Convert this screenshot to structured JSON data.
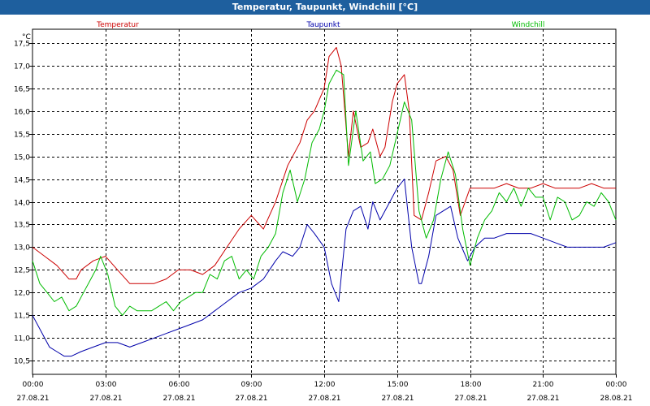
{
  "window": {
    "title": "Temperatur, Taupunkt, Windchill [°C]"
  },
  "chart_data": {
    "type": "line",
    "title": "Temperatur, Taupunkt, Windchill [°C]",
    "ylabel": "°C",
    "xlabel": "",
    "ylim": [
      10.2,
      17.8
    ],
    "xlim": [
      0,
      24
    ],
    "grid": true,
    "y_ticks": [
      "17,5",
      "17,0",
      "16,5",
      "16,0",
      "15,5",
      "15,0",
      "14,5",
      "14,0",
      "13,5",
      "13,0",
      "12,5",
      "12,0",
      "11,5",
      "11,0",
      "10,5"
    ],
    "y_tick_values": [
      17.5,
      17.0,
      16.5,
      16.0,
      15.5,
      15.0,
      14.5,
      14.0,
      13.5,
      13.0,
      12.5,
      12.0,
      11.5,
      11.0,
      10.5
    ],
    "x_ticks": [
      {
        "time": "00:00",
        "date": "27.08.21"
      },
      {
        "time": "03:00",
        "date": "27.08.21"
      },
      {
        "time": "06:00",
        "date": "27.08.21"
      },
      {
        "time": "09:00",
        "date": "27.08.21"
      },
      {
        "time": "12:00",
        "date": "27.08.21"
      },
      {
        "time": "15:00",
        "date": "27.08.21"
      },
      {
        "time": "18:00",
        "date": "27.08.21"
      },
      {
        "time": "21:00",
        "date": "27.08.21"
      },
      {
        "time": "00:00",
        "date": "28.08.21"
      }
    ],
    "series": [
      {
        "name": "Temperatur",
        "color": "#cc0000",
        "x": [
          0,
          0.5,
          1,
          1.5,
          1.8,
          2,
          2.5,
          3,
          3.5,
          4,
          4.5,
          5,
          5.5,
          6,
          6.5,
          7,
          7.5,
          8,
          8.5,
          9,
          9.5,
          10,
          10.5,
          11,
          11.3,
          11.6,
          12,
          12.2,
          12.5,
          12.7,
          13,
          13.2,
          13.5,
          13.8,
          14,
          14.3,
          14.5,
          14.8,
          15,
          15.3,
          15.5,
          15.7,
          16,
          16.3,
          16.6,
          17,
          17.3,
          17.6,
          18,
          18.4,
          19,
          19.5,
          20,
          20.5,
          21,
          21.5,
          22,
          22.5,
          23,
          23.5,
          24
        ],
        "values": [
          13.0,
          12.8,
          12.6,
          12.3,
          12.3,
          12.5,
          12.7,
          12.8,
          12.5,
          12.2,
          12.2,
          12.2,
          12.3,
          12.5,
          12.5,
          12.4,
          12.6,
          13.0,
          13.4,
          13.7,
          13.4,
          14.0,
          14.8,
          15.3,
          15.8,
          16.0,
          16.5,
          17.2,
          17.4,
          17.0,
          15.0,
          16.0,
          15.2,
          15.3,
          15.6,
          15.0,
          15.2,
          16.2,
          16.6,
          16.8,
          16.0,
          13.7,
          13.6,
          14.2,
          14.9,
          15.0,
          14.7,
          13.7,
          14.3,
          14.3,
          14.3,
          14.4,
          14.3,
          14.3,
          14.4,
          14.3,
          14.3,
          14.3,
          14.4,
          14.3,
          14.3
        ]
      },
      {
        "name": "Taupunkt",
        "color": "#0000aa",
        "x": [
          0,
          0.3,
          0.7,
          1,
          1.3,
          1.6,
          2,
          2.5,
          3,
          3.5,
          4,
          4.5,
          5,
          5.5,
          6,
          6.5,
          7,
          7.5,
          8,
          8.5,
          9,
          9.5,
          10,
          10.3,
          10.7,
          11,
          11.3,
          11.6,
          12,
          12.3,
          12.6,
          12.9,
          13.2,
          13.5,
          13.8,
          14,
          14.3,
          14.6,
          15,
          15.3,
          15.6,
          15.9,
          16,
          16.3,
          16.6,
          16.9,
          17.2,
          17.5,
          17.9,
          18.2,
          18.6,
          19,
          19.5,
          20,
          20.5,
          21,
          21.5,
          22,
          22.5,
          23,
          23.5,
          24
        ],
        "values": [
          11.5,
          11.2,
          10.8,
          10.7,
          10.6,
          10.6,
          10.7,
          10.8,
          10.9,
          10.9,
          10.8,
          10.9,
          11.0,
          11.1,
          11.2,
          11.3,
          11.4,
          11.6,
          11.8,
          12.0,
          12.1,
          12.3,
          12.7,
          12.9,
          12.8,
          13.0,
          13.5,
          13.3,
          13.0,
          12.2,
          11.8,
          13.4,
          13.8,
          13.9,
          13.4,
          14.0,
          13.6,
          13.9,
          14.3,
          14.5,
          13.0,
          12.2,
          12.2,
          12.8,
          13.7,
          13.8,
          13.9,
          13.2,
          12.7,
          13.0,
          13.2,
          13.2,
          13.3,
          13.3,
          13.3,
          13.2,
          13.1,
          13.0,
          13.0,
          13.0,
          13.0,
          13.1
        ]
      },
      {
        "name": "Windchill",
        "color": "#00bb00",
        "x": [
          0,
          0.3,
          0.6,
          0.9,
          1.2,
          1.5,
          1.8,
          2.1,
          2.4,
          2.6,
          2.8,
          3.1,
          3.4,
          3.7,
          4,
          4.3,
          4.6,
          4.9,
          5.2,
          5.5,
          5.8,
          6.1,
          6.4,
          6.7,
          7,
          7.3,
          7.6,
          7.9,
          8.2,
          8.5,
          8.8,
          9.1,
          9.4,
          9.7,
          10,
          10.3,
          10.6,
          10.9,
          11.2,
          11.5,
          11.8,
          12,
          12.2,
          12.5,
          12.8,
          13,
          13.3,
          13.6,
          13.9,
          14.1,
          14.4,
          14.7,
          15,
          15.3,
          15.6,
          15.9,
          16.2,
          16.5,
          16.8,
          17.1,
          17.4,
          17.7,
          18,
          18.3,
          18.6,
          18.9,
          19.2,
          19.5,
          19.8,
          20.1,
          20.4,
          20.7,
          21,
          21.3,
          21.6,
          21.9,
          22.2,
          22.5,
          22.8,
          23.1,
          23.4,
          23.7,
          24
        ],
        "values": [
          12.7,
          12.2,
          12.0,
          11.8,
          11.9,
          11.6,
          11.7,
          12.0,
          12.3,
          12.5,
          12.8,
          12.4,
          11.7,
          11.5,
          11.7,
          11.6,
          11.6,
          11.6,
          11.7,
          11.8,
          11.6,
          11.8,
          11.9,
          12.0,
          12.0,
          12.4,
          12.3,
          12.7,
          12.8,
          12.3,
          12.5,
          12.3,
          12.8,
          13.0,
          13.3,
          14.2,
          14.7,
          14.0,
          14.5,
          15.3,
          15.6,
          16.0,
          16.6,
          16.9,
          16.8,
          14.8,
          16.0,
          14.9,
          15.1,
          14.4,
          14.5,
          14.8,
          15.5,
          16.2,
          15.8,
          13.8,
          13.2,
          13.6,
          14.5,
          15.1,
          14.6,
          13.4,
          12.6,
          13.2,
          13.6,
          13.8,
          14.2,
          14.0,
          14.3,
          13.9,
          14.3,
          14.1,
          14.1,
          13.6,
          14.1,
          14.0,
          13.6,
          13.7,
          14.0,
          13.9,
          14.2,
          14.0,
          13.6
        ]
      }
    ]
  }
}
